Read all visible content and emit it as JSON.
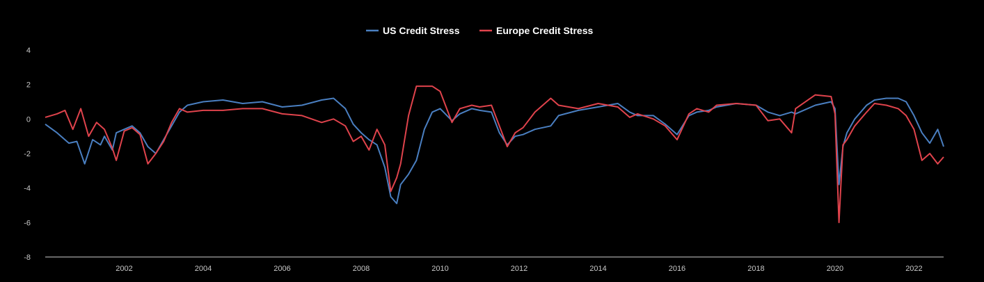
{
  "chart_data": {
    "type": "line",
    "title": "",
    "xlabel": "",
    "ylabel": "",
    "xlim": [
      2000.0,
      2022.75
    ],
    "ylim": [
      -8,
      4
    ],
    "y_ticks": [
      "4",
      "2",
      "0",
      "-2",
      "-4",
      "-6",
      "-8"
    ],
    "x_ticks": [
      "2002",
      "2004",
      "2006",
      "2008",
      "2010",
      "2012",
      "2014",
      "2016",
      "2018",
      "2020",
      "2022"
    ],
    "grid": false,
    "legend_position": "top-center",
    "series": [
      {
        "name": "US Credit Stress",
        "color": "#4a7fc1",
        "x": [
          2000.0,
          2000.3,
          2000.6,
          2000.8,
          2001.0,
          2001.2,
          2001.4,
          2001.5,
          2001.7,
          2001.8,
          2002.0,
          2002.2,
          2002.4,
          2002.6,
          2002.8,
          2003.0,
          2003.2,
          2003.4,
          2003.6,
          2004.0,
          2004.5,
          2005.0,
          2005.5,
          2006.0,
          2006.5,
          2007.0,
          2007.3,
          2007.6,
          2007.8,
          2008.0,
          2008.2,
          2008.4,
          2008.6,
          2008.75,
          2008.9,
          2009.0,
          2009.2,
          2009.4,
          2009.6,
          2009.8,
          2010.0,
          2010.3,
          2010.5,
          2010.8,
          2011.0,
          2011.3,
          2011.5,
          2011.7,
          2011.9,
          2012.1,
          2012.4,
          2012.8,
          2013.0,
          2013.5,
          2014.0,
          2014.5,
          2014.8,
          2015.0,
          2015.4,
          2015.7,
          2016.0,
          2016.3,
          2016.5,
          2016.8,
          2017.0,
          2017.5,
          2018.0,
          2018.3,
          2018.6,
          2018.9,
          2019.0,
          2019.5,
          2019.9,
          2020.0,
          2020.1,
          2020.2,
          2020.3,
          2020.5,
          2020.8,
          2021.0,
          2021.3,
          2021.6,
          2021.8,
          2022.0,
          2022.2,
          2022.4,
          2022.6,
          2022.75
        ],
        "y": [
          -0.3,
          -0.8,
          -1.4,
          -1.3,
          -2.6,
          -1.2,
          -1.5,
          -1.0,
          -1.8,
          -0.8,
          -0.6,
          -0.4,
          -0.8,
          -1.6,
          -2.0,
          -1.2,
          -0.4,
          0.4,
          0.8,
          1.0,
          1.1,
          0.9,
          1.0,
          0.7,
          0.8,
          1.1,
          1.2,
          0.6,
          -0.3,
          -0.8,
          -1.2,
          -1.5,
          -2.8,
          -4.5,
          -4.9,
          -3.8,
          -3.2,
          -2.4,
          -0.6,
          0.4,
          0.6,
          -0.1,
          0.3,
          0.6,
          0.5,
          0.4,
          -0.8,
          -1.5,
          -1.0,
          -0.9,
          -0.6,
          -0.4,
          0.2,
          0.5,
          0.7,
          0.9,
          0.4,
          0.2,
          0.2,
          -0.3,
          -0.9,
          0.2,
          0.4,
          0.5,
          0.7,
          0.9,
          0.8,
          0.4,
          0.2,
          0.4,
          0.3,
          0.8,
          1.0,
          0.6,
          -3.8,
          -1.6,
          -0.8,
          0.0,
          0.8,
          1.1,
          1.2,
          1.2,
          1.0,
          0.2,
          -0.8,
          -1.4,
          -0.6,
          -1.6
        ]
      },
      {
        "name": "Europe Credit Stress",
        "color": "#e0434c",
        "x": [
          2000.0,
          2000.3,
          2000.5,
          2000.7,
          2000.9,
          2001.1,
          2001.3,
          2001.5,
          2001.7,
          2001.8,
          2002.0,
          2002.2,
          2002.4,
          2002.6,
          2002.8,
          2003.0,
          2003.2,
          2003.4,
          2003.6,
          2004.0,
          2004.5,
          2005.0,
          2005.5,
          2006.0,
          2006.5,
          2007.0,
          2007.3,
          2007.6,
          2007.8,
          2008.0,
          2008.2,
          2008.4,
          2008.6,
          2008.75,
          2008.9,
          2009.0,
          2009.2,
          2009.4,
          2009.6,
          2009.8,
          2010.0,
          2010.3,
          2010.5,
          2010.8,
          2011.0,
          2011.3,
          2011.5,
          2011.7,
          2011.9,
          2012.1,
          2012.4,
          2012.8,
          2013.0,
          2013.5,
          2014.0,
          2014.5,
          2014.8,
          2015.0,
          2015.4,
          2015.7,
          2016.0,
          2016.3,
          2016.5,
          2016.8,
          2017.0,
          2017.5,
          2018.0,
          2018.3,
          2018.6,
          2018.9,
          2019.0,
          2019.5,
          2019.9,
          2020.0,
          2020.1,
          2020.2,
          2020.3,
          2020.5,
          2020.8,
          2021.0,
          2021.3,
          2021.6,
          2021.8,
          2022.0,
          2022.2,
          2022.4,
          2022.6,
          2022.75
        ],
        "y": [
          0.1,
          0.3,
          0.5,
          -0.6,
          0.6,
          -1.0,
          -0.2,
          -0.6,
          -1.7,
          -2.4,
          -0.7,
          -0.5,
          -0.9,
          -2.6,
          -2.0,
          -1.3,
          -0.2,
          0.6,
          0.4,
          0.5,
          0.5,
          0.6,
          0.6,
          0.3,
          0.2,
          -0.2,
          0.0,
          -0.4,
          -1.3,
          -1.0,
          -1.8,
          -0.6,
          -1.5,
          -4.2,
          -3.4,
          -2.6,
          0.2,
          1.9,
          1.9,
          1.9,
          1.6,
          -0.2,
          0.6,
          0.8,
          0.7,
          0.8,
          -0.4,
          -1.6,
          -0.8,
          -0.5,
          0.4,
          1.2,
          0.8,
          0.6,
          0.9,
          0.7,
          0.1,
          0.3,
          0.0,
          -0.4,
          -1.2,
          0.3,
          0.6,
          0.4,
          0.8,
          0.9,
          0.8,
          -0.1,
          0.0,
          -0.8,
          0.6,
          1.4,
          1.3,
          0.3,
          -6.0,
          -1.5,
          -1.2,
          -0.4,
          0.4,
          0.9,
          0.8,
          0.6,
          0.2,
          -0.6,
          -2.4,
          -2.0,
          -2.6,
          -2.2
        ]
      }
    ]
  }
}
